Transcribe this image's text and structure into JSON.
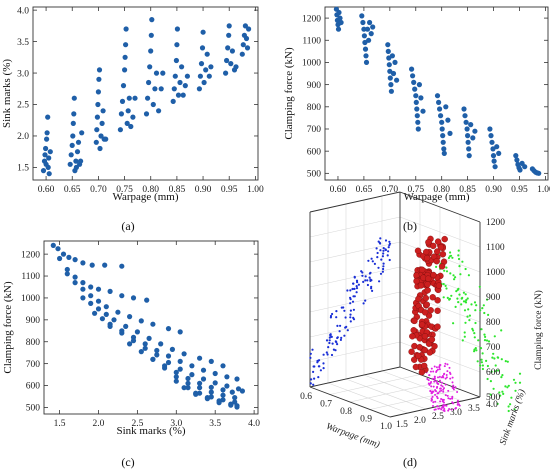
{
  "colors": {
    "dots": "#1f5fa8",
    "proj_blue": "#1a2fd6",
    "proj_green": "#2ee62e",
    "proj_magenta": "#e020e0",
    "balls": "#cc1f1f"
  },
  "chart_data": [
    {
      "type": "scatter",
      "panel_label": "(a)",
      "xlabel": "Warpage (mm)",
      "ylabel": "Sink marks (%)",
      "xlim": [
        0.575,
        1.005
      ],
      "ylim": [
        1.3,
        4.05
      ],
      "xticks": [
        0.6,
        0.65,
        0.7,
        0.75,
        0.8,
        0.85,
        0.9,
        0.95,
        1.0
      ],
      "xtick_labels": [
        "0.60",
        "0.65",
        "0.70",
        "0.75",
        "0.80",
        "0.85",
        "0.90",
        "0.95",
        "1.00"
      ],
      "yticks": [
        1.5,
        2.0,
        2.5,
        3.0,
        3.5,
        4.0
      ],
      "ytick_labels": [
        "1.5",
        "2.0",
        "2.5",
        "3.0",
        "3.5",
        "4.0"
      ],
      "points": [
        [
          0.595,
          1.45
        ],
        [
          0.597,
          1.6
        ],
        [
          0.598,
          1.7
        ],
        [
          0.599,
          1.8
        ],
        [
          0.6,
          1.55
        ],
        [
          0.601,
          1.95
        ],
        [
          0.602,
          2.05
        ],
        [
          0.603,
          2.3
        ],
        [
          0.604,
          1.5
        ],
        [
          0.605,
          1.65
        ],
        [
          0.606,
          1.4
        ],
        [
          0.608,
          1.75
        ],
        [
          0.646,
          1.55
        ],
        [
          0.648,
          1.7
        ],
        [
          0.65,
          1.85
        ],
        [
          0.651,
          2.0
        ],
        [
          0.652,
          2.2
        ],
        [
          0.653,
          2.35
        ],
        [
          0.654,
          2.6
        ],
        [
          0.655,
          1.45
        ],
        [
          0.657,
          1.6
        ],
        [
          0.658,
          1.5
        ],
        [
          0.66,
          1.75
        ],
        [
          0.662,
          1.9
        ],
        [
          0.664,
          1.55
        ],
        [
          0.666,
          1.6
        ],
        [
          0.668,
          2.05
        ],
        [
          0.696,
          1.9
        ],
        [
          0.697,
          2.1
        ],
        [
          0.698,
          2.3
        ],
        [
          0.699,
          2.5
        ],
        [
          0.7,
          2.7
        ],
        [
          0.701,
          2.9
        ],
        [
          0.702,
          3.05
        ],
        [
          0.703,
          1.8
        ],
        [
          0.705,
          2.0
        ],
        [
          0.707,
          2.2
        ],
        [
          0.709,
          2.4
        ],
        [
          0.711,
          1.95
        ],
        [
          0.714,
          1.95
        ],
        [
          0.742,
          2.1
        ],
        [
          0.744,
          2.35
        ],
        [
          0.746,
          2.55
        ],
        [
          0.748,
          2.8
        ],
        [
          0.75,
          3.05
        ],
        [
          0.751,
          3.25
        ],
        [
          0.752,
          3.45
        ],
        [
          0.753,
          3.7
        ],
        [
          0.755,
          2.2
        ],
        [
          0.757,
          2.4
        ],
        [
          0.759,
          2.6
        ],
        [
          0.762,
          2.15
        ],
        [
          0.766,
          2.3
        ],
        [
          0.77,
          2.6
        ],
        [
          0.792,
          2.35
        ],
        [
          0.794,
          2.6
        ],
        [
          0.796,
          2.85
        ],
        [
          0.798,
          3.1
        ],
        [
          0.8,
          3.35
        ],
        [
          0.801,
          3.6
        ],
        [
          0.802,
          3.85
        ],
        [
          0.805,
          2.5
        ],
        [
          0.808,
          2.75
        ],
        [
          0.811,
          3.0
        ],
        [
          0.815,
          2.4
        ],
        [
          0.82,
          2.75
        ],
        [
          0.823,
          3.0
        ],
        [
          0.843,
          2.55
        ],
        [
          0.845,
          2.75
        ],
        [
          0.847,
          2.95
        ],
        [
          0.849,
          3.2
        ],
        [
          0.85,
          3.45
        ],
        [
          0.851,
          3.7
        ],
        [
          0.853,
          2.65
        ],
        [
          0.856,
          2.85
        ],
        [
          0.859,
          3.1
        ],
        [
          0.862,
          2.65
        ],
        [
          0.866,
          2.8
        ],
        [
          0.87,
          2.95
        ],
        [
          0.893,
          2.75
        ],
        [
          0.895,
          2.95
        ],
        [
          0.897,
          3.15
        ],
        [
          0.899,
          3.4
        ],
        [
          0.9,
          3.65
        ],
        [
          0.902,
          2.85
        ],
        [
          0.905,
          3.05
        ],
        [
          0.908,
          3.3
        ],
        [
          0.912,
          2.95
        ],
        [
          0.915,
          3.1
        ],
        [
          0.943,
          3.0
        ],
        [
          0.945,
          3.2
        ],
        [
          0.947,
          3.4
        ],
        [
          0.949,
          3.6
        ],
        [
          0.95,
          3.75
        ],
        [
          0.953,
          3.15
        ],
        [
          0.956,
          3.35
        ],
        [
          0.96,
          3.05
        ],
        [
          0.963,
          3.1
        ],
        [
          0.975,
          3.3
        ],
        [
          0.977,
          3.45
        ],
        [
          0.979,
          3.6
        ],
        [
          0.981,
          3.75
        ],
        [
          0.983,
          3.55
        ],
        [
          0.985,
          3.4
        ],
        [
          0.987,
          3.7
        ]
      ]
    },
    {
      "type": "scatter",
      "panel_label": "(b)",
      "xlabel": "Warpage (mm)",
      "ylabel": "Clamping force (kN)",
      "xlim": [
        0.575,
        1.005
      ],
      "ylim": [
        470,
        1250
      ],
      "xticks": [
        0.6,
        0.65,
        0.7,
        0.75,
        0.8,
        0.85,
        0.9,
        0.95,
        1.0
      ],
      "xtick_labels": [
        "0.60",
        "0.65",
        "0.70",
        "0.75",
        "0.80",
        "0.85",
        "0.90",
        "0.95",
        "1.00"
      ],
      "yticks": [
        500,
        600,
        700,
        800,
        900,
        1000,
        1100,
        1200
      ],
      "ytick_labels": [
        "500",
        "600",
        "700",
        "800",
        "900",
        "1000",
        "1100",
        "1200"
      ],
      "points": [
        [
          0.597,
          1240
        ],
        [
          0.598,
          1215
        ],
        [
          0.599,
          1190
        ],
        [
          0.6,
          1170
        ],
        [
          0.601,
          1150
        ],
        [
          0.602,
          1225
        ],
        [
          0.604,
          1200
        ],
        [
          0.606,
          1180
        ],
        [
          0.646,
          1210
        ],
        [
          0.648,
          1180
        ],
        [
          0.65,
          1150
        ],
        [
          0.651,
          1120
        ],
        [
          0.652,
          1090
        ],
        [
          0.653,
          1060
        ],
        [
          0.654,
          1030
        ],
        [
          0.655,
          1000
        ],
        [
          0.657,
          1150
        ],
        [
          0.659,
          1100
        ],
        [
          0.661,
          1180
        ],
        [
          0.664,
          1130
        ],
        [
          0.667,
          1160
        ],
        [
          0.696,
          1080
        ],
        [
          0.697,
          1050
        ],
        [
          0.698,
          1020
        ],
        [
          0.699,
          990
        ],
        [
          0.7,
          960
        ],
        [
          0.701,
          930
        ],
        [
          0.702,
          900
        ],
        [
          0.703,
          870
        ],
        [
          0.705,
          1030
        ],
        [
          0.707,
          950
        ],
        [
          0.71,
          1000
        ],
        [
          0.713,
          920
        ],
        [
          0.742,
          970
        ],
        [
          0.744,
          940
        ],
        [
          0.746,
          910
        ],
        [
          0.748,
          880
        ],
        [
          0.75,
          850
        ],
        [
          0.751,
          820
        ],
        [
          0.752,
          790
        ],
        [
          0.753,
          760
        ],
        [
          0.754,
          730
        ],
        [
          0.755,
          700
        ],
        [
          0.757,
          900
        ],
        [
          0.76,
          840
        ],
        [
          0.764,
          780
        ],
        [
          0.792,
          850
        ],
        [
          0.794,
          820
        ],
        [
          0.796,
          790
        ],
        [
          0.798,
          760
        ],
        [
          0.8,
          730
        ],
        [
          0.801,
          700
        ],
        [
          0.802,
          670
        ],
        [
          0.803,
          640
        ],
        [
          0.804,
          610
        ],
        [
          0.805,
          590
        ],
        [
          0.808,
          800
        ],
        [
          0.812,
          740
        ],
        [
          0.816,
          680
        ],
        [
          0.843,
          790
        ],
        [
          0.845,
          760
        ],
        [
          0.847,
          730
        ],
        [
          0.849,
          700
        ],
        [
          0.85,
          670
        ],
        [
          0.851,
          640
        ],
        [
          0.852,
          610
        ],
        [
          0.853,
          580
        ],
        [
          0.856,
          720
        ],
        [
          0.86,
          660
        ],
        [
          0.864,
          690
        ],
        [
          0.893,
          700
        ],
        [
          0.895,
          670
        ],
        [
          0.897,
          640
        ],
        [
          0.899,
          610
        ],
        [
          0.9,
          580
        ],
        [
          0.901,
          555
        ],
        [
          0.903,
          530
        ],
        [
          0.906,
          620
        ],
        [
          0.91,
          590
        ],
        [
          0.943,
          580
        ],
        [
          0.945,
          560
        ],
        [
          0.947,
          540
        ],
        [
          0.949,
          525
        ],
        [
          0.951,
          515
        ],
        [
          0.955,
          545
        ],
        [
          0.96,
          530
        ],
        [
          0.975,
          520
        ],
        [
          0.978,
          512
        ],
        [
          0.981,
          505
        ],
        [
          0.984,
          502
        ],
        [
          0.987,
          500
        ]
      ]
    },
    {
      "type": "scatter",
      "panel_label": "(c)",
      "xlabel": "Sink marks (%)",
      "ylabel": "Clamping force (kN)",
      "xlim": [
        1.3,
        4.05
      ],
      "ylim": [
        470,
        1260
      ],
      "xticks": [
        1.5,
        2.0,
        2.5,
        3.0,
        3.5,
        4.0
      ],
      "xtick_labels": [
        "1.5",
        "2.0",
        "2.5",
        "3.0",
        "3.5",
        "4.0"
      ],
      "yticks": [
        500,
        600,
        700,
        800,
        900,
        1000,
        1100,
        1200
      ],
      "ytick_labels": [
        "500",
        "600",
        "700",
        "800",
        "900",
        "1000",
        "1100",
        "1200"
      ],
      "points": [
        [
          1.42,
          1240
        ],
        [
          1.48,
          1225
        ],
        [
          1.55,
          1200
        ],
        [
          1.62,
          1185
        ],
        [
          1.7,
          1175
        ],
        [
          1.8,
          1160
        ],
        [
          1.92,
          1150
        ],
        [
          2.08,
          1150
        ],
        [
          2.3,
          1145
        ],
        [
          1.5,
          1180
        ],
        [
          1.6,
          1130
        ],
        [
          1.7,
          1095
        ],
        [
          1.8,
          1070
        ],
        [
          1.9,
          1050
        ],
        [
          2.0,
          1040
        ],
        [
          2.15,
          1030
        ],
        [
          2.3,
          1010
        ],
        [
          2.45,
          1000
        ],
        [
          2.62,
          990
        ],
        [
          1.6,
          1110
        ],
        [
          1.7,
          1070
        ],
        [
          1.8,
          1040
        ],
        [
          1.9,
          1010
        ],
        [
          2.0,
          985
        ],
        [
          2.1,
          960
        ],
        [
          2.25,
          935
        ],
        [
          2.4,
          915
        ],
        [
          2.55,
          895
        ],
        [
          2.7,
          880
        ],
        [
          2.9,
          860
        ],
        [
          3.05,
          845
        ],
        [
          1.8,
          1000
        ],
        [
          1.9,
          975
        ],
        [
          2.0,
          950
        ],
        [
          2.1,
          925
        ],
        [
          2.2,
          900
        ],
        [
          2.35,
          870
        ],
        [
          2.5,
          845
        ],
        [
          2.65,
          815
        ],
        [
          2.8,
          790
        ],
        [
          2.95,
          765
        ],
        [
          3.1,
          745
        ],
        [
          3.3,
          725
        ],
        [
          3.45,
          710
        ],
        [
          3.6,
          690
        ],
        [
          1.95,
          930
        ],
        [
          2.05,
          905
        ],
        [
          2.15,
          880
        ],
        [
          2.3,
          850
        ],
        [
          2.45,
          820
        ],
        [
          2.6,
          790
        ],
        [
          2.75,
          760
        ],
        [
          2.9,
          735
        ],
        [
          3.05,
          710
        ],
        [
          3.2,
          690
        ],
        [
          3.35,
          670
        ],
        [
          3.5,
          655
        ],
        [
          3.65,
          640
        ],
        [
          3.78,
          630
        ],
        [
          2.15,
          870
        ],
        [
          2.3,
          840
        ],
        [
          2.45,
          805
        ],
        [
          2.6,
          770
        ],
        [
          2.75,
          740
        ],
        [
          2.9,
          705
        ],
        [
          3.05,
          675
        ],
        [
          3.2,
          650
        ],
        [
          3.35,
          630
        ],
        [
          3.5,
          612
        ],
        [
          3.65,
          598
        ],
        [
          3.8,
          585
        ],
        [
          3.85,
          575
        ],
        [
          2.4,
          790
        ],
        [
          2.55,
          755
        ],
        [
          2.7,
          720
        ],
        [
          2.85,
          690
        ],
        [
          3.0,
          660
        ],
        [
          3.15,
          632
        ],
        [
          3.3,
          610
        ],
        [
          3.45,
          592
        ],
        [
          3.6,
          580
        ],
        [
          3.72,
          570
        ],
        [
          2.7,
          720
        ],
        [
          2.85,
          680
        ],
        [
          3.0,
          640
        ],
        [
          3.15,
          610
        ],
        [
          3.3,
          590
        ],
        [
          3.45,
          570
        ],
        [
          3.6,
          556
        ],
        [
          3.75,
          545
        ],
        [
          3.0,
          620
        ],
        [
          3.15,
          590
        ],
        [
          3.3,
          565
        ],
        [
          3.45,
          548
        ],
        [
          3.6,
          535
        ],
        [
          3.75,
          525
        ],
        [
          3.1,
          590
        ],
        [
          3.25,
          565
        ],
        [
          3.4,
          545
        ],
        [
          3.55,
          530
        ],
        [
          3.7,
          515
        ],
        [
          3.78,
          508
        ],
        [
          3.25,
          560
        ],
        [
          3.4,
          540
        ],
        [
          3.55,
          522
        ],
        [
          3.7,
          510
        ],
        [
          3.78,
          502
        ]
      ]
    },
    {
      "type": "scatter",
      "subtype": "3d",
      "panel_label": "(d)",
      "xlabel": "Warpage (mm)",
      "ylabel": "Sink marks (%)",
      "zlabel": "Clamping force (kN)",
      "x_ticks": [
        "0.6",
        "0.7",
        "0.8",
        "0.9",
        "1.0"
      ],
      "y_ticks": [
        "1.5",
        "2.0",
        "2.5",
        "3.0",
        "3.5",
        "4.0"
      ],
      "z_ticks": [
        "500",
        "600",
        "700",
        "800",
        "900",
        "1000",
        "1100",
        "1200"
      ],
      "series": [
        {
          "role": "xz projection",
          "color": "#1a2fd6",
          "marker": "small dot"
        },
        {
          "role": "yz projection",
          "color": "#2ee62e",
          "marker": "small dot"
        },
        {
          "role": "xy projection",
          "color": "#e020e0",
          "marker": "small dot"
        },
        {
          "role": "3d points",
          "color": "#cc1f1f",
          "marker": "sphere"
        }
      ]
    }
  ]
}
